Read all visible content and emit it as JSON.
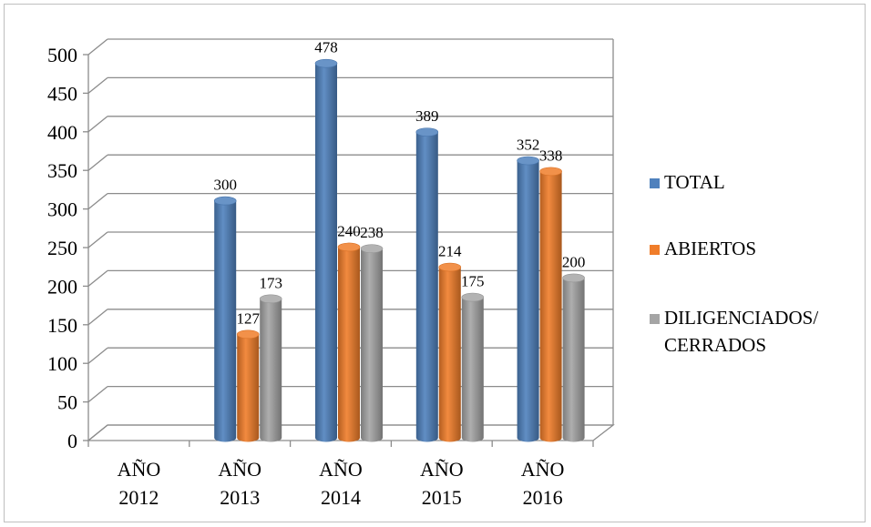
{
  "chart_data": {
    "type": "bar",
    "categories": [
      [
        "AÑO",
        "2012"
      ],
      [
        "AÑO",
        "2013"
      ],
      [
        "AÑO",
        "2014"
      ],
      [
        "AÑO",
        "2015"
      ],
      [
        "AÑO",
        "2016"
      ]
    ],
    "series": [
      {
        "name": "TOTAL",
        "values": [
          null,
          300,
          478,
          389,
          352
        ],
        "color": "#4f81bd"
      },
      {
        "name": "ABIERTOS",
        "values": [
          null,
          127,
          240,
          214,
          338
        ],
        "color": "#f07d2a"
      },
      {
        "name": "DILIGENCIADOS/ CERRADOS",
        "legend_lines": [
          "DILIGENCIADOS/",
          "CERRADOS"
        ],
        "values": [
          null,
          173,
          238,
          175,
          200
        ],
        "color": "#a5a5a5"
      }
    ],
    "ylim": [
      0,
      500
    ],
    "yticks": [
      0,
      50,
      100,
      150,
      200,
      250,
      300,
      350,
      400,
      450,
      500
    ],
    "grid": true,
    "legend_position": "right",
    "style": "3d-cylinder"
  }
}
